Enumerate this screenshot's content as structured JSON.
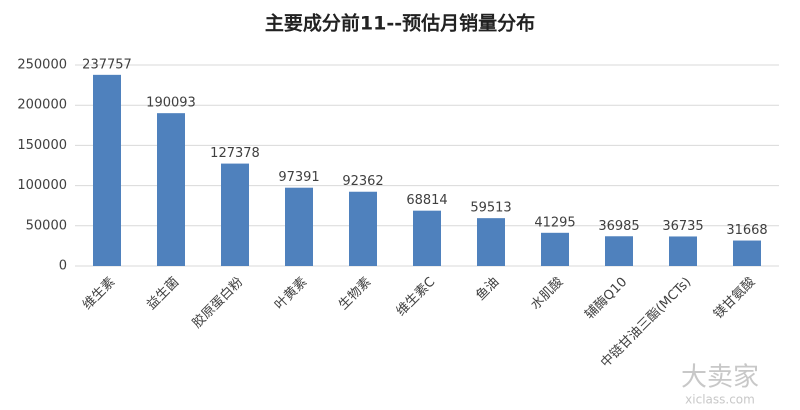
{
  "chart_data": {
    "type": "bar",
    "title": "主要成分前11--预估月销量分布",
    "categories": [
      "维生素",
      "益生菌",
      "胶原蛋白粉",
      "叶黄素",
      "生物素",
      "维生素C",
      "鱼油",
      "水肌酸",
      "辅酶Q10",
      "中链甘油三酯(MCTs)",
      "镁甘氨酸"
    ],
    "values": [
      237757,
      190093,
      127378,
      97391,
      92362,
      68814,
      59513,
      41295,
      36985,
      36735,
      31668
    ],
    "color": "#4f81bd",
    "ylim": [
      0,
      250000
    ],
    "yticks": [
      0,
      50000,
      100000,
      150000,
      200000,
      250000
    ],
    "grid": true,
    "watermark": "大卖家",
    "watermark_url": "xiclass.com"
  }
}
